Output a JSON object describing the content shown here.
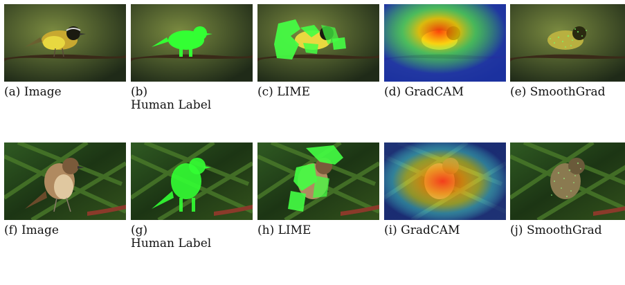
{
  "figure": {
    "rows": [
      {
        "panels": [
          {
            "tag": "(a)",
            "label": "Image"
          },
          {
            "tag": "(b)",
            "label": "Human Label"
          },
          {
            "tag": "(c)",
            "label": "LIME"
          },
          {
            "tag": "(d)",
            "label": "GradCAM"
          },
          {
            "tag": "(e)",
            "label": "SmoothGrad"
          }
        ]
      },
      {
        "panels": [
          {
            "tag": "(f)",
            "label": "Image"
          },
          {
            "tag": "(g)",
            "label": "Human Label"
          },
          {
            "tag": "(h)",
            "label": "LIME"
          },
          {
            "tag": "(i)",
            "label": "GradCAM"
          },
          {
            "tag": "(j)",
            "label": "SmoothGrad"
          }
        ]
      }
    ],
    "colors": {
      "mask_green": "#33ff33",
      "row1_background": "#4a5a2a",
      "row2_background": "#1e3a1a"
    }
  }
}
